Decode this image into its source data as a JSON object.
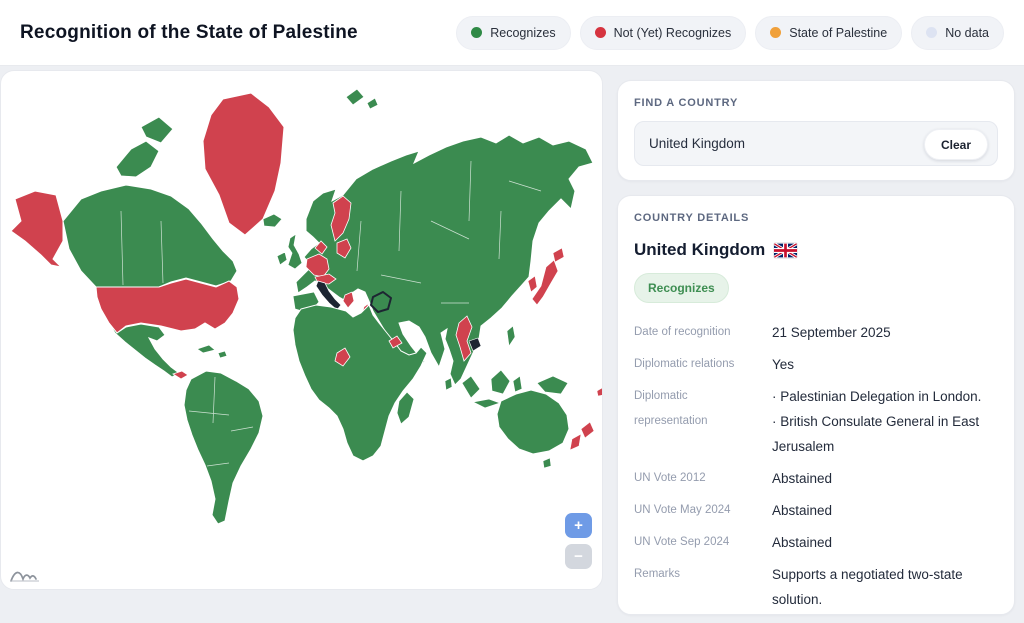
{
  "header": {
    "title": "Recognition of the State of Palestine",
    "legend": [
      {
        "label": "Recognizes",
        "color": "#2f8a46"
      },
      {
        "label": "Not (Yet) Recognizes",
        "color": "#d63440"
      },
      {
        "label": "State of Palestine",
        "color": "#f0a03a"
      },
      {
        "label": "No data",
        "color": "#dde3f2"
      }
    ]
  },
  "search": {
    "section_label": "FIND A COUNTRY",
    "value": "United Kingdom",
    "clear_label": "Clear"
  },
  "details": {
    "section_label": "COUNTRY DETAILS",
    "country_name": "United Kingdom",
    "flag_icon": "uk-flag",
    "status_badge": "Recognizes",
    "rows": [
      {
        "label": "Date of recognition",
        "value": "21 September 2025"
      },
      {
        "label": "Diplomatic relations",
        "value": "Yes"
      },
      {
        "label": "Diplomatic representation",
        "lines": [
          "· Palestinian Delegation in London.",
          "· British Consulate General in East Jerusalem"
        ]
      },
      {
        "label": "UN Vote 2012",
        "value": "Abstained"
      },
      {
        "label": "UN Vote May 2024",
        "value": "Abstained"
      },
      {
        "label": "UN Vote Sep 2024",
        "value": "Abstained"
      },
      {
        "label": "Remarks",
        "value": "Supports a negotiated two-state solution."
      }
    ]
  },
  "map": {
    "zoom_in": "+",
    "zoom_out": "−",
    "status_colors": {
      "recognizes": "#3b8b50",
      "not_recognizes": "#d0424e",
      "state_of_palestine": "#f0a33c",
      "no_data": "#dfe4f0",
      "highlight": "#1d2532"
    },
    "regions": {
      "canada": "recognizes",
      "arctic-islands-1": "recognizes",
      "arctic-islands-2": "recognizes",
      "alaska": "not_recognizes",
      "greenland": "not_recognizes",
      "usa": "not_recognizes",
      "mexico-central-america": "recognizes",
      "panama": "not_recognizes",
      "cuba": "recognizes",
      "hispaniola": "recognizes",
      "south-america": "recognizes",
      "iceland": "recognizes",
      "ireland": "recognizes",
      "great-britain": "recognizes",
      "svalbard-1": "recognizes",
      "svalbard-2": "recognizes",
      "eurasia": "recognizes",
      "finland": "not_recognizes",
      "baltics": "not_recognizes",
      "denmark": "not_recognizes",
      "germany-benelux": "not_recognizes",
      "alpine": "not_recognizes",
      "greece": "not_recognizes",
      "italy": "highlight",
      "sicily": "highlight",
      "israel": "not_recognizes",
      "palestine": "state_of_palestine",
      "iraq": "recognizes",
      "africa": "recognizes",
      "madagascar": "recognizes",
      "cameroon": "not_recognizes",
      "eritrea": "not_recognizes",
      "sri-lanka": "recognizes",
      "south-korea": "not_recognizes",
      "japan": "not_recognizes",
      "hokkaido": "not_recognizes",
      "myanmar": "not_recognizes",
      "cambodia": "highlight",
      "philippines": "recognizes",
      "sumatra": "recognizes",
      "java": "recognizes",
      "borneo": "recognizes",
      "sulawesi": "recognizes",
      "new-guinea": "recognizes",
      "australia": "recognizes",
      "tasmania": "recognizes",
      "new-zealand-north": "not_recognizes",
      "new-zealand-south": "not_recognizes",
      "pacific-island": "not_recognizes"
    }
  }
}
